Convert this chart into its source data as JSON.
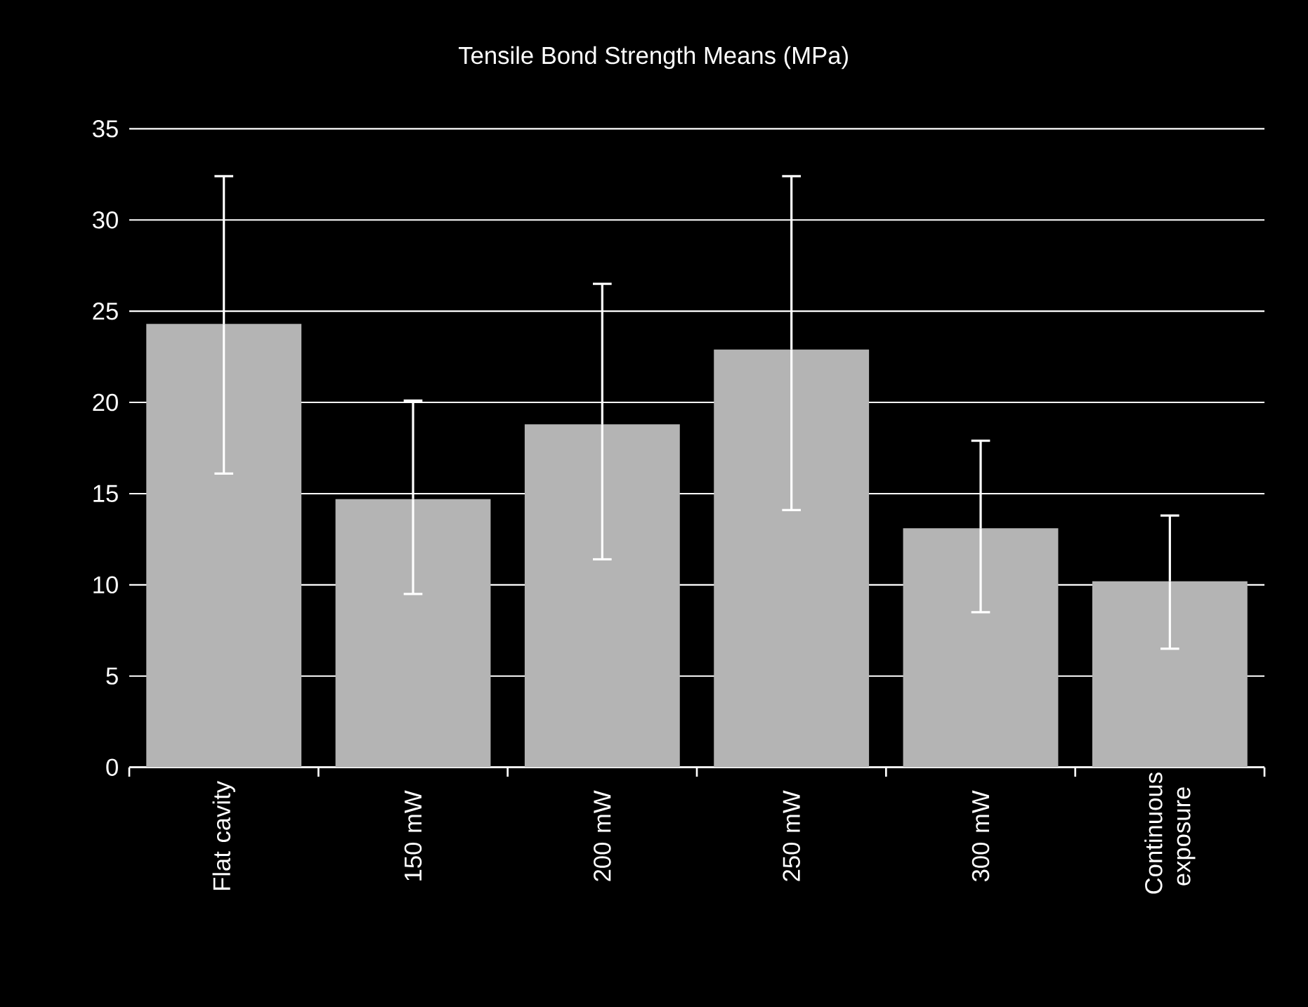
{
  "chart_data": {
    "type": "bar",
    "title": "Tensile Bond Strength Means (MPa)",
    "categories": [
      "Flat cavity",
      "150 mW",
      "200 mW",
      "250 mW",
      "300 mW",
      "Continuous exposure"
    ],
    "values": [
      24.3,
      14.7,
      18.8,
      22.9,
      13.1,
      10.2
    ],
    "errors": [
      [
        16.1,
        32.4
      ],
      [
        9.5,
        20.1
      ],
      [
        11.4,
        26.5
      ],
      [
        14.1,
        32.4
      ],
      [
        8.5,
        17.9
      ],
      [
        6.5,
        13.8
      ]
    ],
    "color": "#b4b4b4",
    "ylim": [
      0,
      35
    ],
    "yticks": [
      0,
      5,
      10,
      15,
      20,
      25,
      30,
      35
    ],
    "grid": "y"
  }
}
